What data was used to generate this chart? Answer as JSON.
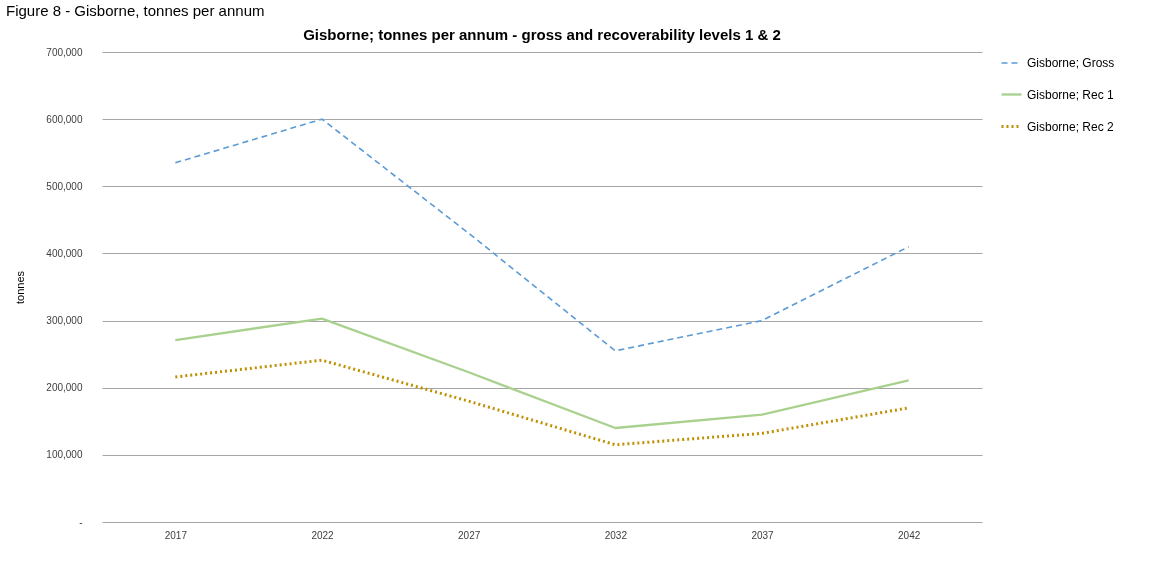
{
  "chart_data": {
    "type": "line",
    "title": "Gisborne; tonnes per annum - gross and recoverability levels 1 & 2",
    "ylabel": "tonnes",
    "annotations": [
      "Figure 8 - Gisborne, tonnes per annum"
    ],
    "categories": [
      "2017",
      "2022",
      "2027",
      "2032",
      "2037",
      "2042"
    ],
    "series": [
      {
        "name": "Gisborne; Gross",
        "color": "#5b9bd5",
        "line_style": "dashed",
        "values": [
          535000,
          600000,
          430000,
          255000,
          300000,
          410000
        ]
      },
      {
        "name": "Gisborne; Rec 1",
        "color": "#a9d18e",
        "line_style": "solid",
        "values": [
          271000,
          303000,
          223000,
          140000,
          160000,
          211000
        ]
      },
      {
        "name": "Gisborne; Rec 2",
        "color": "#bf9000",
        "line_style": "dotted",
        "values": [
          216000,
          241000,
          180000,
          115000,
          132000,
          170000
        ]
      }
    ],
    "ylim": [
      0,
      700000
    ],
    "yticks": [
      {
        "value": 0,
        "label": "-"
      },
      {
        "value": 100000,
        "label": "100,000"
      },
      {
        "value": 200000,
        "label": "200,000"
      },
      {
        "value": 300000,
        "label": "300,000"
      },
      {
        "value": 400000,
        "label": "400,000"
      },
      {
        "value": 500000,
        "label": "500,000"
      },
      {
        "value": 600000,
        "label": "600,000"
      },
      {
        "value": 700000,
        "label": "700,000"
      }
    ],
    "grid": "y",
    "legend": "right",
    "marker": "none"
  }
}
